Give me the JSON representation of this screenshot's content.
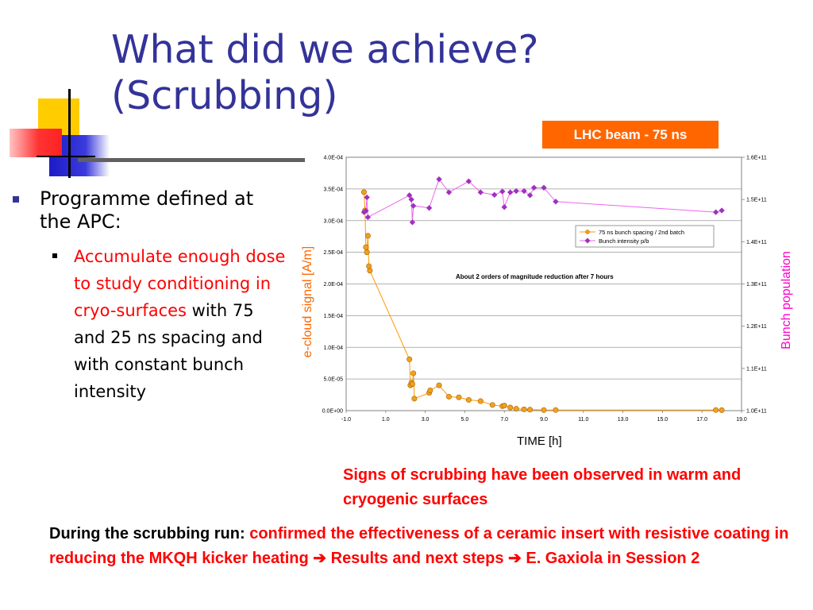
{
  "slide": {
    "title_line1": "What did we achieve?",
    "title_line2": "(Scrubbing)",
    "badge": "LHC beam - 75 ns",
    "bullet1": "Programme defined at the APC:",
    "sub_red": "Accumulate enough dose to study conditioning in cryo-surfaces",
    "sub_black": " with 75 and 25 ns spacing and with constant bunch intensity",
    "caption": "Signs of scrubbing have been observed in warm and cryogenic surfaces",
    "footer_black": "During the scrubbing run: ",
    "footer_red1": "confirmed the effectiveness of a ceramic insert with resistive coating in reducing the MKQH kicker heating ",
    "footer_red2": " Results and next steps ",
    "footer_red3": " E. Gaxiola in Session 2",
    "arrow": "➔",
    "colors": {
      "title": "#333399",
      "accent_red": "#ff0000",
      "badge": "#ff6600",
      "ecloud": "#ff9900",
      "bunch": "#ee66ee"
    }
  },
  "chart_data": {
    "type": "scatter",
    "xlabel": "TIME [h]",
    "ylabel": "e-cloud signal [A/m]",
    "y2label": "Bunch population",
    "annotation": "About 2 orders of magnitude reduction after 7 hours",
    "xlim": [
      -1.0,
      19.0
    ],
    "ylim": [
      0,
      0.0004
    ],
    "y2lim": [
      100000000000.0,
      160000000000.0
    ],
    "x_ticks": [
      "-1.0",
      "1.0",
      "3.0",
      "5.0",
      "7.0",
      "9.0",
      "11.0",
      "13.0",
      "15.0",
      "17.0",
      "19.0"
    ],
    "y_ticks": [
      "0.0E+00",
      "5.0E-05",
      "1.0E-04",
      "1.5E-04",
      "2.0E-04",
      "2.5E-04",
      "3.0E-04",
      "3.5E-04",
      "4.0E-04"
    ],
    "y2_ticks": [
      "1.0E+11",
      "1.1E+11",
      "1.2E+11",
      "1.3E+11",
      "1.4E+11",
      "1.5E+11",
      "1.6E+11"
    ],
    "legend": [
      "75 ns bunch spacing / 2nd batch",
      "Bunch intensity p/b"
    ],
    "series": [
      {
        "name": "75 ns bunch spacing / 2nd batch",
        "axis": "left",
        "x": [
          -0.1,
          -0.05,
          0.0,
          0.05,
          0.1,
          0.15,
          0.2,
          2.2,
          2.25,
          2.3,
          2.35,
          2.4,
          2.45,
          3.2,
          3.25,
          3.7,
          4.2,
          4.7,
          5.2,
          5.8,
          6.4,
          6.9,
          7.0,
          7.3,
          7.6,
          8.0,
          8.3,
          9.0,
          9.6,
          17.7,
          18.0
        ],
        "y": [
          0.000345,
          0.000316,
          0.000258,
          0.00025,
          0.000276,
          0.000228,
          0.000221,
          8.1e-05,
          4e-05,
          4.4e-05,
          4.2e-05,
          5.9e-05,
          1.9e-05,
          2.8e-05,
          3.2e-05,
          4e-05,
          2.2e-05,
          2.1e-05,
          1.7e-05,
          1.5e-05,
          9e-06,
          7e-06,
          8e-06,
          5e-06,
          3e-06,
          2e-06,
          1.5e-06,
          1e-06,
          1e-06,
          1e-06,
          8e-07
        ]
      },
      {
        "name": "Bunch intensity p/b",
        "axis": "right",
        "x": [
          -0.1,
          0.0,
          0.05,
          0.1,
          2.2,
          2.3,
          2.35,
          2.4,
          3.2,
          3.7,
          4.2,
          5.2,
          5.8,
          6.5,
          6.9,
          7.0,
          7.3,
          7.6,
          8.0,
          8.3,
          8.5,
          9.0,
          9.6,
          17.7,
          18.0
        ],
        "y": [
          147000000000.0,
          147300000000.0,
          150500000000.0,
          145800000000.0,
          151000000000.0,
          150000000000.0,
          144600000000.0,
          148500000000.0,
          148000000000.0,
          154800000000.0,
          151700000000.0,
          154300000000.0,
          151700000000.0,
          151100000000.0,
          151900000000.0,
          148200000000.0,
          151700000000.0,
          152000000000.0,
          152000000000.0,
          151000000000.0,
          152800000000.0,
          152800000000.0,
          149500000000.0,
          147000000000.0,
          147400000000.0
        ]
      }
    ]
  }
}
